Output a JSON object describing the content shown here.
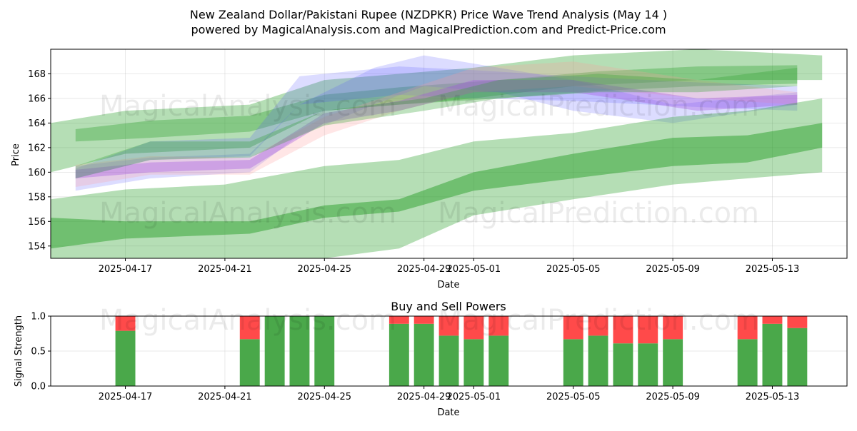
{
  "header": {
    "title_line1": "New Zealand Dollar/Pakistani Rupee (NZDPKR) Price Wave Trend Analysis (May 14 )",
    "title_line2": "powered by MagicalAnalysis.com and MagicalPrediction.com and Predict-Price.com"
  },
  "watermarks": {
    "left": "MagicalAnalysis.com",
    "right": "MagicalPrediction.com"
  },
  "colors": {
    "green": "#2ca02c",
    "blue": "#4f4fff",
    "pink": "#ff9a9a",
    "purple": "#a050e0",
    "buy": "#4aa84a",
    "sell": "#ff4a4a"
  },
  "chart_data": [
    {
      "type": "area",
      "title": "",
      "xlabel": "Date",
      "ylabel": "Price",
      "xlim": [
        "2025-04-14",
        "2025-05-16"
      ],
      "ylim": [
        153.0,
        170.0
      ],
      "x_ticks": [
        "2025-04-17",
        "2025-04-21",
        "2025-04-25",
        "2025-04-29",
        "2025-05-01",
        "2025-05-05",
        "2025-05-09",
        "2025-05-13"
      ],
      "x_tick_labels": [
        "2025-04-17",
        "2025-04-21",
        "2025-04-25",
        "2025-04-29",
        "2025-05-01",
        "2025-05-05",
        "2025-05-09",
        "2025-05-13"
      ],
      "y_ticks": [
        154,
        156,
        158,
        160,
        162,
        164,
        166,
        168
      ],
      "y_tick_labels": [
        "154",
        "156",
        "158",
        "160",
        "162",
        "164",
        "166",
        "168"
      ],
      "grid": true,
      "series": [
        {
          "color": "green",
          "x": [
            "2025-04-14",
            "2025-04-17",
            "2025-04-22",
            "2025-04-25",
            "2025-04-28",
            "2025-05-01",
            "2025-05-05",
            "2025-05-10",
            "2025-05-15"
          ],
          "upper": [
            164.0,
            165.0,
            165.5,
            167.5,
            168.0,
            168.5,
            169.5,
            170.0,
            169.5
          ],
          "lower": [
            160.0,
            161.5,
            162.0,
            165.0,
            165.5,
            166.0,
            167.0,
            167.5,
            167.5
          ],
          "opacity": 0.35
        },
        {
          "color": "green",
          "x": [
            "2025-04-15",
            "2025-04-18",
            "2025-04-22",
            "2025-04-25",
            "2025-04-28",
            "2025-05-02",
            "2025-05-06",
            "2025-05-10",
            "2025-05-14"
          ],
          "upper": [
            163.5,
            164.2,
            164.6,
            166.3,
            166.9,
            167.5,
            168.2,
            168.6,
            168.7
          ],
          "lower": [
            162.5,
            162.8,
            163.3,
            165.0,
            165.5,
            166.0,
            166.6,
            167.0,
            167.2
          ],
          "opacity": 0.35
        },
        {
          "color": "blue",
          "x": [
            "2025-04-15",
            "2025-04-18",
            "2025-04-22",
            "2025-04-24",
            "2025-04-27",
            "2025-04-29",
            "2025-05-02",
            "2025-05-05",
            "2025-05-09",
            "2025-05-14"
          ],
          "upper": [
            160.5,
            161.2,
            161.5,
            165.5,
            168.5,
            169.5,
            168.5,
            167.5,
            165.5,
            166.5
          ],
          "lower": [
            158.5,
            159.5,
            160.0,
            163.0,
            165.5,
            167.0,
            166.5,
            165.0,
            164.0,
            165.5
          ],
          "opacity": 0.2
        },
        {
          "color": "blue",
          "x": [
            "2025-04-15",
            "2025-04-18",
            "2025-04-22",
            "2025-04-24",
            "2025-04-28",
            "2025-05-01",
            "2025-05-05",
            "2025-05-10",
            "2025-05-14"
          ],
          "upper": [
            160.3,
            162.5,
            162.8,
            167.8,
            168.6,
            168.3,
            167.8,
            167.3,
            167.0
          ],
          "lower": [
            159.5,
            161.0,
            161.3,
            165.5,
            166.3,
            166.0,
            165.8,
            165.3,
            165.0
          ],
          "opacity": 0.2
        },
        {
          "color": "pink",
          "x": [
            "2025-04-15",
            "2025-04-18",
            "2025-04-22",
            "2025-04-25",
            "2025-04-28",
            "2025-05-01",
            "2025-05-05",
            "2025-05-10",
            "2025-05-14"
          ],
          "upper": [
            160.6,
            161.3,
            161.2,
            164.5,
            166.5,
            168.5,
            169.0,
            167.5,
            166.5
          ],
          "lower": [
            158.8,
            159.8,
            159.8,
            163.0,
            165.0,
            166.5,
            167.0,
            166.0,
            165.5
          ],
          "opacity": 0.25
        },
        {
          "color": "purple",
          "x": [
            "2025-04-15",
            "2025-04-18",
            "2025-04-22",
            "2025-04-25",
            "2025-04-28",
            "2025-05-01",
            "2025-05-05",
            "2025-05-10",
            "2025-05-14"
          ],
          "upper": [
            160.2,
            160.8,
            161.0,
            164.8,
            165.8,
            167.5,
            167.5,
            166.0,
            166.3
          ],
          "lower": [
            159.5,
            160.0,
            160.3,
            164.0,
            165.0,
            166.5,
            166.5,
            165.0,
            165.5
          ],
          "opacity": 0.35
        },
        {
          "color": "green",
          "x": [
            "2025-04-15",
            "2025-04-18",
            "2025-04-22",
            "2025-04-25",
            "2025-04-29",
            "2025-05-02",
            "2025-05-06",
            "2025-05-10",
            "2025-05-14"
          ],
          "upper": [
            160.5,
            162.5,
            162.5,
            165.0,
            166.0,
            167.5,
            168.0,
            167.5,
            168.5
          ],
          "lower": [
            159.5,
            161.0,
            161.2,
            163.8,
            165.0,
            166.0,
            166.5,
            166.5,
            167.0
          ],
          "opacity": 0.3
        },
        {
          "color": "green",
          "x": [
            "2025-04-14",
            "2025-04-17",
            "2025-04-21",
            "2025-04-25",
            "2025-04-28",
            "2025-05-01",
            "2025-05-05",
            "2025-05-09",
            "2025-05-12",
            "2025-05-15"
          ],
          "upper": [
            157.8,
            158.6,
            159.0,
            160.5,
            161.0,
            162.5,
            163.2,
            164.5,
            165.0,
            166.0
          ],
          "lower": [
            153.0,
            152.5,
            152.2,
            153.0,
            153.8,
            156.5,
            157.8,
            159.0,
            159.5,
            160.0
          ],
          "opacity": 0.35
        },
        {
          "color": "green",
          "x": [
            "2025-04-14",
            "2025-04-17",
            "2025-04-22",
            "2025-04-25",
            "2025-04-28",
            "2025-05-01",
            "2025-05-05",
            "2025-05-09",
            "2025-05-12",
            "2025-05-15"
          ],
          "upper": [
            156.3,
            156.0,
            156.0,
            157.3,
            157.8,
            160.0,
            161.5,
            162.8,
            163.0,
            164.0
          ],
          "lower": [
            153.8,
            154.6,
            155.0,
            156.3,
            156.8,
            158.5,
            159.5,
            160.5,
            160.8,
            162.0
          ],
          "opacity": 0.5
        }
      ]
    },
    {
      "type": "bar",
      "title": "Buy and Sell Powers",
      "xlabel": "Date",
      "ylabel": "Signal Strength",
      "xlim": [
        "2025-04-14",
        "2025-05-16"
      ],
      "ylim": [
        0.0,
        1.0
      ],
      "x_ticks": [
        "2025-04-17",
        "2025-04-21",
        "2025-04-25",
        "2025-04-29",
        "2025-05-01",
        "2025-05-05",
        "2025-05-09",
        "2025-05-13"
      ],
      "x_tick_labels": [
        "2025-04-17",
        "2025-04-21",
        "2025-04-25",
        "2025-04-29",
        "2025-05-01",
        "2025-05-05",
        "2025-05-09",
        "2025-05-13"
      ],
      "y_ticks": [
        0.0,
        0.5,
        1.0
      ],
      "y_tick_labels": [
        "0.0",
        "0.5",
        "1.0"
      ],
      "grid": true,
      "categories": [
        "2025-04-17",
        "2025-04-22",
        "2025-04-23",
        "2025-04-24",
        "2025-04-25",
        "2025-04-28",
        "2025-04-29",
        "2025-04-30",
        "2025-05-01",
        "2025-05-02",
        "2025-05-05",
        "2025-05-06",
        "2025-05-07",
        "2025-05-08",
        "2025-05-09",
        "2025-05-12",
        "2025-05-13",
        "2025-05-14"
      ],
      "series": [
        {
          "values": [
            0.79,
            0.67,
            1.0,
            1.0,
            1.0,
            0.89,
            0.89,
            0.72,
            0.67,
            0.72,
            0.67,
            0.72,
            0.61,
            0.61,
            0.67,
            0.67,
            0.89,
            0.83
          ],
          "color": "buy"
        },
        {
          "values": [
            0.21,
            0.33,
            0.0,
            0.0,
            0.0,
            0.11,
            0.11,
            0.28,
            0.33,
            0.28,
            0.33,
            0.28,
            0.39,
            0.39,
            0.33,
            0.33,
            0.11,
            0.17
          ],
          "color": "sell"
        }
      ]
    }
  ]
}
